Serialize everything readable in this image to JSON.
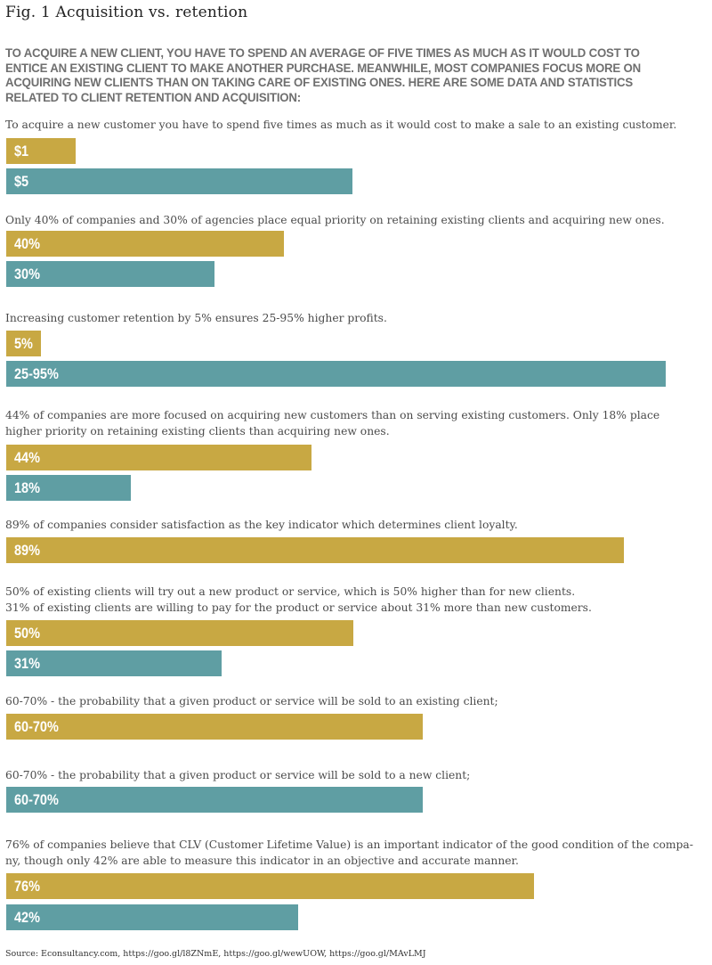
{
  "title": "Fig. 1 Acquisition vs. retention",
  "subtitle": "To acquire a new client, you have to spend an average of five times as much as it would cost to entice an existing client to make another purchase. Meanwhile, most companies focus more on acquiring new clients than on taking care of existing ones. Here are some data and statistics related to client retention and acquisition:",
  "source": "Source: Econsultancy.com, https://goo.gl/l8ZNmE, https://goo.gl/wewUOW, https://goo.gl/MAvLMJ",
  "colors": {
    "acquisition_bar": "#c8a843",
    "retention_bar": "#5f9ea3"
  },
  "chart_data": {
    "type": "bar",
    "orientation": "horizontal",
    "groups": [
      {
        "statement": [
          "To acquire a new customer you have to spend five times as much as it would cost to make a sale to an existing customer."
        ],
        "bars": [
          {
            "label": "$1",
            "value": 1,
            "color": "#c8a843"
          },
          {
            "label": "$5",
            "value": 5,
            "color": "#5f9ea3"
          }
        ]
      },
      {
        "statement": [
          "Only 40% of companies and 30% of agencies place equal priority on retaining existing clients and acquiring new ones."
        ],
        "bars": [
          {
            "label": "40%",
            "value": 40,
            "color": "#c8a843"
          },
          {
            "label": "30%",
            "value": 30,
            "color": "#5f9ea3"
          }
        ]
      },
      {
        "statement": [
          "Increasing customer retention by 5% ensures 25-95% higher profits."
        ],
        "bars": [
          {
            "label": "5%",
            "value": 5,
            "color": "#c8a843"
          },
          {
            "label": "25-95%",
            "value": 95,
            "color": "#5f9ea3"
          }
        ]
      },
      {
        "statement": [
          "44% of companies are more focused on acquiring new customers than on serving existing customers. Only 18% place",
          "higher priority on retaining existing clients than acquiring new ones."
        ],
        "bars": [
          {
            "label": "44%",
            "value": 44,
            "color": "#c8a843"
          },
          {
            "label": "18%",
            "value": 18,
            "color": "#5f9ea3"
          }
        ]
      },
      {
        "statement": [
          "89% of companies consider satisfaction as the key indicator which determines client loyalty."
        ],
        "bars": [
          {
            "label": "89%",
            "value": 89,
            "color": "#c8a843"
          }
        ]
      },
      {
        "statement": [
          "50% of existing clients will try out a new product or service, which is 50% higher than for new clients.",
          "31% of existing clients are willing to pay for the product or service about 31% more than new customers."
        ],
        "bars": [
          {
            "label": "50%",
            "value": 50,
            "color": "#c8a843"
          },
          {
            "label": "31%",
            "value": 31,
            "color": "#5f9ea3"
          }
        ]
      },
      {
        "statement": [
          "60-70% - the probability that a given product or service will be sold to an existing client;"
        ],
        "bars": [
          {
            "label": "60-70%",
            "value": 60,
            "color": "#c8a843"
          }
        ]
      },
      {
        "statement": [
          "60-70% - the probability that a given product or service will be sold to a new client;"
        ],
        "bars": [
          {
            "label": "60-70%",
            "value": 60,
            "color": "#5f9ea3"
          }
        ]
      },
      {
        "statement": [
          "76% of companies believe that CLV (Customer Lifetime Value) is an important indicator of the good condition of the compa-",
          "ny, though only 42% are able to measure this indicator in an objective and accurate manner."
        ],
        "bars": [
          {
            "label": "76%",
            "value": 76,
            "color": "#c8a843"
          },
          {
            "label": "42%",
            "value": 42,
            "color": "#5f9ea3"
          }
        ]
      }
    ]
  }
}
